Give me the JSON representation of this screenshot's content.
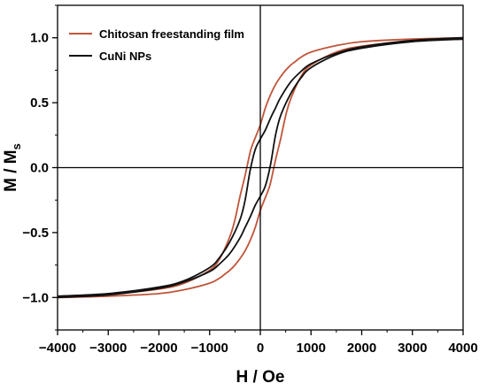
{
  "chart_data": {
    "type": "line",
    "xlabel": "H / Oe",
    "ylabel": {
      "main": "M / M",
      "sub": "s"
    },
    "xlim": [
      -4000,
      4000
    ],
    "ylim": [
      -1.25,
      1.25
    ],
    "xticks": [
      -4000,
      -3000,
      -2000,
      -1000,
      0,
      1000,
      2000,
      3000,
      4000
    ],
    "xtick_labels": [
      "−4000",
      "−3000",
      "−2000",
      "−1000",
      "0",
      "1000",
      "2000",
      "3000",
      "4000"
    ],
    "yticks": [
      -1.0,
      -0.5,
      0.0,
      0.5,
      1.0
    ],
    "ytick_labels": [
      "−1.0",
      "−0.5",
      "0.0",
      "0.5",
      "1.0"
    ],
    "grid": false,
    "zero_lines": true,
    "legend_position": "top-left",
    "series": [
      {
        "name": "Chitosan freestanding film",
        "color": "#c0553a",
        "upper": {
          "x": [
            -4000,
            -3000,
            -2000,
            -1500,
            -1000,
            -800,
            -600,
            -500,
            -400,
            -300,
            -200,
            -150,
            -100,
            0,
            100,
            200,
            300,
            400,
            500,
            600,
            700,
            800,
            1000,
            1500,
            2000,
            3000,
            4000
          ],
          "y": [
            -0.99,
            -0.975,
            -0.935,
            -0.89,
            -0.79,
            -0.7,
            -0.53,
            -0.4,
            -0.22,
            -0.06,
            0.12,
            0.18,
            0.23,
            0.33,
            0.46,
            0.56,
            0.64,
            0.7,
            0.75,
            0.79,
            0.82,
            0.85,
            0.89,
            0.94,
            0.97,
            0.99,
            1.0
          ]
        },
        "lower": {
          "x": [
            -4000,
            -3000,
            -2000,
            -1500,
            -1000,
            -800,
            -700,
            -600,
            -500,
            -400,
            -300,
            -200,
            -100,
            0,
            100,
            150,
            200,
            300,
            400,
            500,
            600,
            800,
            1000,
            1500,
            2000,
            3000,
            4000
          ],
          "y": [
            -1.0,
            -0.99,
            -0.97,
            -0.94,
            -0.89,
            -0.85,
            -0.82,
            -0.79,
            -0.75,
            -0.7,
            -0.64,
            -0.56,
            -0.46,
            -0.33,
            -0.23,
            -0.18,
            -0.12,
            0.06,
            0.22,
            0.4,
            0.53,
            0.7,
            0.79,
            0.89,
            0.935,
            0.975,
            0.99
          ]
        }
      },
      {
        "name": "CuNi NPs",
        "color": "#111111",
        "upper": {
          "x": [
            -4000,
            -3000,
            -2000,
            -1500,
            -1000,
            -800,
            -600,
            -400,
            -300,
            -200,
            -100,
            0,
            100,
            200,
            300,
            400,
            600,
            800,
            1000,
            1500,
            2000,
            3000,
            4000
          ],
          "y": [
            -0.99,
            -0.97,
            -0.92,
            -0.87,
            -0.77,
            -0.69,
            -0.57,
            -0.4,
            -0.25,
            -0.02,
            0.14,
            0.22,
            0.29,
            0.38,
            0.46,
            0.54,
            0.66,
            0.74,
            0.8,
            0.88,
            0.93,
            0.98,
            1.0
          ]
        },
        "lower": {
          "x": [
            -4000,
            -3000,
            -2000,
            -1500,
            -1000,
            -800,
            -600,
            -400,
            -300,
            -200,
            -100,
            0,
            100,
            200,
            300,
            400,
            600,
            800,
            1000,
            1500,
            2000,
            3000,
            4000
          ],
          "y": [
            -1.0,
            -0.98,
            -0.93,
            -0.88,
            -0.8,
            -0.74,
            -0.66,
            -0.54,
            -0.46,
            -0.38,
            -0.29,
            -0.22,
            -0.14,
            0.02,
            0.25,
            0.4,
            0.57,
            0.69,
            0.77,
            0.87,
            0.92,
            0.97,
            0.99
          ]
        }
      }
    ]
  }
}
